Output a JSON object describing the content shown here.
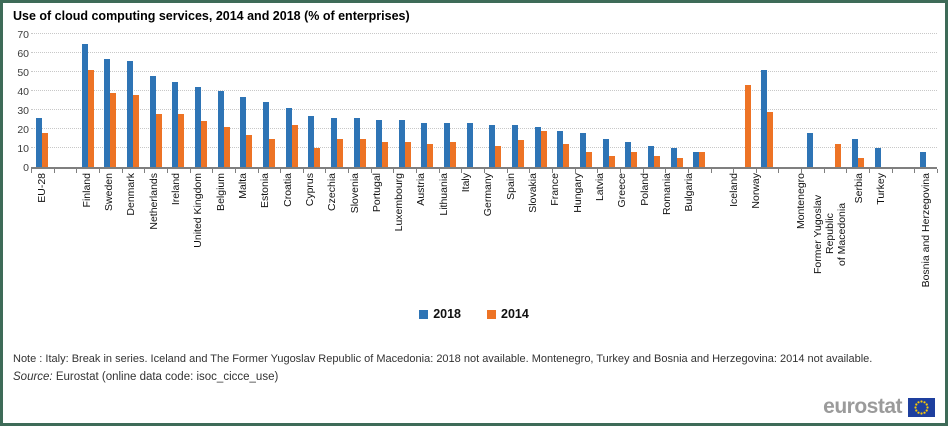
{
  "frame": {
    "border_color": "#3e6b58"
  },
  "chart_data": {
    "type": "bar",
    "title": "Use of cloud computing services, 2014 and 2018 (% of enterprises)",
    "xlabel": "",
    "ylabel": "% of enterprises",
    "ylim": [
      0,
      70
    ],
    "ytick_step": 10,
    "grid": "horizontal dotted gridlines",
    "legend_position": "bottom-center",
    "series": [
      {
        "name": "2018",
        "color": "#2e74b5"
      },
      {
        "name": "2014",
        "color": "#ed7325"
      }
    ],
    "points": [
      {
        "label": "EU-28",
        "values": [
          26,
          18
        ]
      },
      {
        "label": ""
      },
      {
        "label": "Finland",
        "values": [
          65,
          51
        ]
      },
      {
        "label": "Sweden",
        "values": [
          57,
          39
        ]
      },
      {
        "label": "Denmark",
        "values": [
          56,
          38
        ]
      },
      {
        "label": "Netherlands",
        "values": [
          48,
          28
        ]
      },
      {
        "label": "Ireland",
        "values": [
          45,
          28
        ]
      },
      {
        "label": "United Kingdom",
        "values": [
          42,
          24
        ]
      },
      {
        "label": "Belgium",
        "values": [
          40,
          21
        ]
      },
      {
        "label": "Malta",
        "values": [
          37,
          17
        ]
      },
      {
        "label": "Estonia",
        "values": [
          34,
          15
        ]
      },
      {
        "label": "Croatia",
        "values": [
          31,
          22
        ]
      },
      {
        "label": "Cyprus",
        "values": [
          27,
          10
        ]
      },
      {
        "label": "Czechia",
        "values": [
          26,
          15
        ]
      },
      {
        "label": "Slovenia",
        "values": [
          26,
          15
        ]
      },
      {
        "label": "Portugal",
        "values": [
          25,
          13
        ]
      },
      {
        "label": "Luxembourg",
        "values": [
          25,
          13
        ]
      },
      {
        "label": "Austria",
        "values": [
          23,
          12
        ]
      },
      {
        "label": "Lithuania",
        "values": [
          23,
          13
        ]
      },
      {
        "label": "Italy",
        "values": [
          23,
          null
        ]
      },
      {
        "label": "Germany",
        "values": [
          22,
          11
        ]
      },
      {
        "label": "Spain",
        "values": [
          22,
          14
        ]
      },
      {
        "label": "Slovakia",
        "values": [
          21,
          19
        ]
      },
      {
        "label": "France",
        "values": [
          19,
          12
        ]
      },
      {
        "label": "Hungary",
        "values": [
          18,
          8
        ]
      },
      {
        "label": "Latvia",
        "values": [
          15,
          6
        ]
      },
      {
        "label": "Greece",
        "values": [
          13,
          8
        ]
      },
      {
        "label": "Poland",
        "values": [
          11,
          6
        ]
      },
      {
        "label": "Romania",
        "values": [
          10,
          5
        ]
      },
      {
        "label": "Bulgaria",
        "values": [
          8,
          8
        ]
      },
      {
        "label": ""
      },
      {
        "label": "Iceland",
        "values": [
          null,
          43
        ]
      },
      {
        "label": "Norway",
        "values": [
          51,
          29
        ]
      },
      {
        "label": ""
      },
      {
        "label": "Montenegro",
        "values": [
          18,
          null
        ]
      },
      {
        "label": "Former Yugoslav Republic\nof Macedonia",
        "values": [
          null,
          12
        ]
      },
      {
        "label": "Serbia",
        "values": [
          15,
          5
        ]
      },
      {
        "label": "Turkey",
        "values": [
          10,
          null
        ]
      },
      {
        "label": ""
      },
      {
        "label": "Bosnia and Herzegovina",
        "values": [
          8,
          null
        ]
      }
    ]
  },
  "notes": {
    "note": "Note : Italy: Break in series. Iceland and The Former Yugoslav Republic of Macedonia: 2018 not available. Montenegro, Turkey and Bosnia and Herzegovina: 2014 not available.",
    "source_label": "Source:",
    "source_text": " Eurostat (online data code: isoc_cicce_use)"
  },
  "logo": {
    "text": "eurostat"
  }
}
